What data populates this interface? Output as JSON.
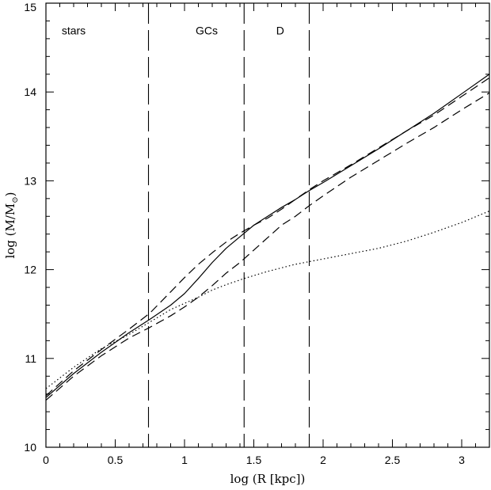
{
  "chart_data": {
    "type": "line",
    "xlabel": "log (R [kpc])",
    "ylabel": {
      "prefix": "log (M/M",
      "sub": "⊙",
      "suffix": ")"
    },
    "xlim": [
      0,
      3.2
    ],
    "ylim": [
      10,
      15
    ],
    "x_ticks": [
      {
        "value": 0,
        "label": "0"
      },
      {
        "value": 0.5,
        "label": "0.5"
      },
      {
        "value": 1,
        "label": "1"
      },
      {
        "value": 1.5,
        "label": "1.5"
      },
      {
        "value": 2,
        "label": "2"
      },
      {
        "value": 2.5,
        "label": "2.5"
      },
      {
        "value": 3,
        "label": "3"
      }
    ],
    "y_ticks": [
      {
        "value": 10,
        "label": "10"
      },
      {
        "value": 11,
        "label": "11"
      },
      {
        "value": 12,
        "label": "12"
      },
      {
        "value": 13,
        "label": "13"
      },
      {
        "value": 14,
        "label": "14"
      },
      {
        "value": 15,
        "label": "15"
      }
    ],
    "x_minor_step": 0.1,
    "y_minor_step": 0.2,
    "region_boundaries": [
      0.74,
      1.43,
      1.9
    ],
    "region_labels": [
      {
        "text": "stars",
        "x": 0.2,
        "y": 14.65
      },
      {
        "text": "GCs",
        "x": 1.16,
        "y": 14.65
      },
      {
        "text": "D",
        "x": 1.69,
        "y": 14.65
      }
    ],
    "series": [
      {
        "style": "solid",
        "points": [
          [
            0,
            10.56
          ],
          [
            0.2,
            10.83
          ],
          [
            0.4,
            11.07
          ],
          [
            0.6,
            11.29
          ],
          [
            0.75,
            11.44
          ],
          [
            0.9,
            11.6
          ],
          [
            1.0,
            11.73
          ],
          [
            1.1,
            11.9
          ],
          [
            1.2,
            12.08
          ],
          [
            1.3,
            12.24
          ],
          [
            1.4,
            12.37
          ],
          [
            1.5,
            12.5
          ],
          [
            1.6,
            12.6
          ],
          [
            1.7,
            12.7
          ],
          [
            1.8,
            12.79
          ],
          [
            1.9,
            12.89
          ],
          [
            2.0,
            12.98
          ],
          [
            2.2,
            13.17
          ],
          [
            2.4,
            13.36
          ],
          [
            2.6,
            13.56
          ],
          [
            2.8,
            13.76
          ],
          [
            3.0,
            13.98
          ],
          [
            3.2,
            14.2
          ]
        ]
      },
      {
        "style": "dashed",
        "points": [
          [
            0,
            10.58
          ],
          [
            0.2,
            10.86
          ],
          [
            0.4,
            11.1
          ],
          [
            0.6,
            11.33
          ],
          [
            0.75,
            11.51
          ],
          [
            0.9,
            11.75
          ],
          [
            1.0,
            11.91
          ],
          [
            1.1,
            12.06
          ],
          [
            1.2,
            12.19
          ],
          [
            1.3,
            12.31
          ],
          [
            1.4,
            12.41
          ],
          [
            1.5,
            12.5
          ],
          [
            1.6,
            12.58
          ],
          [
            1.7,
            12.68
          ],
          [
            1.8,
            12.79
          ],
          [
            1.9,
            12.9
          ],
          [
            2.0,
            13.0
          ],
          [
            2.2,
            13.18
          ],
          [
            2.4,
            13.37
          ],
          [
            2.6,
            13.56
          ],
          [
            2.8,
            13.74
          ],
          [
            3.0,
            13.95
          ],
          [
            3.2,
            14.16
          ]
        ]
      },
      {
        "style": "dashed",
        "points": [
          [
            0,
            10.53
          ],
          [
            0.2,
            10.8
          ],
          [
            0.4,
            11.03
          ],
          [
            0.6,
            11.23
          ],
          [
            0.75,
            11.35
          ],
          [
            0.9,
            11.48
          ],
          [
            1.0,
            11.58
          ],
          [
            1.1,
            11.69
          ],
          [
            1.2,
            11.82
          ],
          [
            1.3,
            11.96
          ],
          [
            1.4,
            12.08
          ],
          [
            1.5,
            12.22
          ],
          [
            1.6,
            12.36
          ],
          [
            1.7,
            12.5
          ],
          [
            1.8,
            12.6
          ],
          [
            1.9,
            12.72
          ],
          [
            2.0,
            12.83
          ],
          [
            2.2,
            13.04
          ],
          [
            2.4,
            13.23
          ],
          [
            2.6,
            13.42
          ],
          [
            2.8,
            13.6
          ],
          [
            3.0,
            13.8
          ],
          [
            3.2,
            13.99
          ]
        ]
      },
      {
        "style": "dotted",
        "points": [
          [
            0,
            10.66
          ],
          [
            0.2,
            10.9
          ],
          [
            0.4,
            11.11
          ],
          [
            0.6,
            11.27
          ],
          [
            0.75,
            11.41
          ],
          [
            0.9,
            11.55
          ],
          [
            1.0,
            11.62
          ],
          [
            1.1,
            11.69
          ],
          [
            1.2,
            11.77
          ],
          [
            1.3,
            11.83
          ],
          [
            1.43,
            11.9
          ],
          [
            1.6,
            11.98
          ],
          [
            1.8,
            12.06
          ],
          [
            2.0,
            12.12
          ],
          [
            2.2,
            12.18
          ],
          [
            2.4,
            12.24
          ],
          [
            2.6,
            12.32
          ],
          [
            2.8,
            12.42
          ],
          [
            3.0,
            12.53
          ],
          [
            3.2,
            12.66
          ]
        ]
      }
    ]
  }
}
